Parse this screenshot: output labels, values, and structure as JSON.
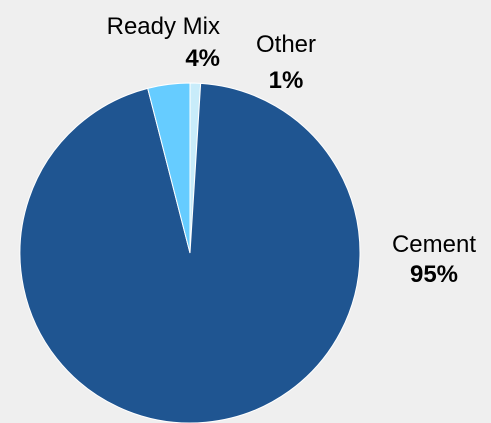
{
  "chart_data": {
    "type": "pie",
    "title": "",
    "slices": [
      {
        "label": "Cement",
        "value": 95,
        "display": "95%",
        "color": "#1f5591"
      },
      {
        "label": "Ready Mix",
        "value": 4,
        "display": "4%",
        "color": "#66ccff"
      },
      {
        "label": "Other",
        "value": 1,
        "display": "1%",
        "color": "#c8ecfa"
      }
    ],
    "legend": "none",
    "labels": "outside"
  }
}
